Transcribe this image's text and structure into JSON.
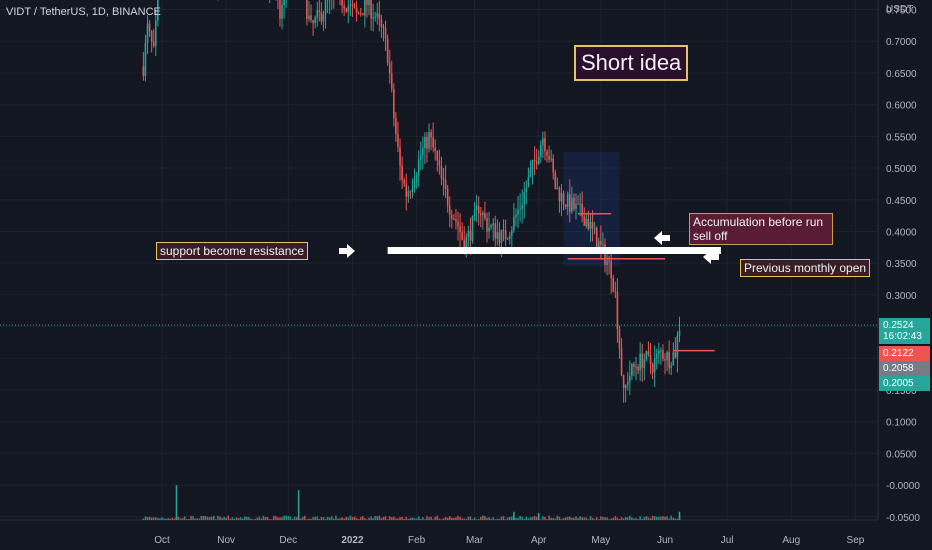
{
  "header": {
    "symbol": "VIDT / TetherUS, 1D, BINANCE",
    "currency": "USDT"
  },
  "chart_data": {
    "type": "candlestick",
    "y_axis": {
      "ticks": [
        "0.7500",
        "0.7000",
        "0.6500",
        "0.6000",
        "0.5500",
        "0.5000",
        "0.4500",
        "0.4000",
        "0.3500",
        "0.3000",
        "0.2500",
        "0.2000",
        "0.1500",
        "0.1000",
        "0.0500",
        "-0.0000",
        "-0.0500"
      ],
      "range": [
        -0.055,
        0.765
      ]
    },
    "x_axis": {
      "ticks": [
        {
          "label": "Oct",
          "date": "2021-10-01"
        },
        {
          "label": "Nov",
          "date": "2021-11-01"
        },
        {
          "label": "Dec",
          "date": "2021-12-01"
        },
        {
          "label": "2022",
          "date": "2022-01-01",
          "bold": true
        },
        {
          "label": "Feb",
          "date": "2022-02-01"
        },
        {
          "label": "Mar",
          "date": "2022-03-01"
        },
        {
          "label": "Apr",
          "date": "2022-04-01"
        },
        {
          "label": "May",
          "date": "2022-05-01"
        },
        {
          "label": "Jun",
          "date": "2022-06-01"
        },
        {
          "label": "Jul",
          "date": "2022-07-01"
        },
        {
          "label": "Aug",
          "date": "2022-08-01"
        },
        {
          "label": "Sep",
          "date": "2022-09-01"
        }
      ]
    },
    "price_path": [
      [
        "2021-09-22",
        0.66
      ],
      [
        "2021-09-24",
        0.72
      ],
      [
        "2021-09-27",
        0.68
      ],
      [
        "2021-09-29",
        0.76
      ],
      [
        "2021-10-01",
        0.8
      ],
      [
        "2021-11-20",
        0.8
      ],
      [
        "2021-11-24",
        0.78
      ],
      [
        "2021-11-27",
        0.74
      ],
      [
        "2021-12-01",
        0.8
      ],
      [
        "2021-12-08",
        0.78
      ],
      [
        "2021-12-12",
        0.72
      ],
      [
        "2021-12-16",
        0.74
      ],
      [
        "2021-12-20",
        0.76
      ],
      [
        "2021-12-25",
        0.77
      ],
      [
        "2021-12-29",
        0.76
      ],
      [
        "2022-01-03",
        0.74
      ],
      [
        "2022-01-08",
        0.76
      ],
      [
        "2022-01-12",
        0.74
      ],
      [
        "2022-01-16",
        0.71
      ],
      [
        "2022-01-18",
        0.68
      ],
      [
        "2022-01-21",
        0.58
      ],
      [
        "2022-01-24",
        0.5
      ],
      [
        "2022-01-27",
        0.46
      ],
      [
        "2022-01-30",
        0.48
      ],
      [
        "2022-02-03",
        0.52
      ],
      [
        "2022-02-07",
        0.55
      ],
      [
        "2022-02-10",
        0.52
      ],
      [
        "2022-02-13",
        0.48
      ],
      [
        "2022-02-17",
        0.44
      ],
      [
        "2022-02-21",
        0.41
      ],
      [
        "2022-02-24",
        0.38
      ],
      [
        "2022-02-27",
        0.4
      ],
      [
        "2022-03-03",
        0.44
      ],
      [
        "2022-03-07",
        0.41
      ],
      [
        "2022-03-11",
        0.4
      ],
      [
        "2022-03-15",
        0.39
      ],
      [
        "2022-03-19",
        0.41
      ],
      [
        "2022-03-23",
        0.44
      ],
      [
        "2022-03-27",
        0.48
      ],
      [
        "2022-03-31",
        0.52
      ],
      [
        "2022-04-03",
        0.55
      ],
      [
        "2022-04-06",
        0.52
      ],
      [
        "2022-04-09",
        0.47
      ],
      [
        "2022-04-13",
        0.45
      ],
      [
        "2022-04-17",
        0.44
      ],
      [
        "2022-04-21",
        0.43
      ],
      [
        "2022-04-24",
        0.42
      ],
      [
        "2022-04-27",
        0.4
      ],
      [
        "2022-04-30",
        0.38
      ],
      [
        "2022-05-03",
        0.36
      ],
      [
        "2022-05-06",
        0.34
      ],
      [
        "2022-05-08",
        0.3
      ],
      [
        "2022-05-10",
        0.22
      ],
      [
        "2022-05-12",
        0.14
      ],
      [
        "2022-05-14",
        0.17
      ],
      [
        "2022-05-18",
        0.19
      ],
      [
        "2022-05-22",
        0.2
      ],
      [
        "2022-05-26",
        0.19
      ],
      [
        "2022-05-30",
        0.21
      ],
      [
        "2022-06-03",
        0.2
      ],
      [
        "2022-06-06",
        0.21
      ],
      [
        "2022-06-08",
        0.2524
      ]
    ],
    "volume_spikes": [
      [
        "2021-10-08",
        0.055
      ],
      [
        "2021-12-06",
        0.047
      ],
      [
        "2022-03-20",
        0.013
      ],
      [
        "2022-04-01",
        0.011
      ],
      [
        "2022-06-08",
        0.013
      ]
    ],
    "last_price": {
      "label": "0.2524",
      "countdown": "16:02:43",
      "value": 0.2524,
      "color": "#26a69a"
    },
    "price_badges": [
      {
        "label": "0.2122",
        "value": 0.2122,
        "color": "#ef5350"
      },
      {
        "label": "0.2058",
        "value": 0.2058,
        "color": "#787b86"
      },
      {
        "label": "0.2005",
        "value": 0.2005,
        "color": "#26a69a"
      }
    ],
    "drawn_levels": [
      {
        "name": "support-resistance-line",
        "value": 0.37,
        "from": "2022-01-18",
        "to": "2022-06-28",
        "color": "#ffffff"
      },
      {
        "name": "previous-monthly-open-line",
        "value": 0.357,
        "from": "2022-04-15",
        "to": "2022-06-01",
        "color": "#ef5350"
      },
      {
        "name": "accumulation-top-line",
        "value": 0.428,
        "from": "2022-04-20",
        "to": "2022-05-06",
        "color": "#ef5350"
      },
      {
        "name": "current-level-line",
        "value": 0.212,
        "from": "2022-06-05",
        "to": "2022-06-25",
        "color": "#ef5350"
      }
    ],
    "colors": {
      "up": "#26a69a",
      "down": "#ef5350",
      "background": "#131722",
      "grid": "#1e222d"
    }
  },
  "annotations": {
    "title": "Short idea",
    "support": "support become resistance",
    "accumulation": "Accumulation before  run sell off",
    "monthly_open": "Previous monthly open"
  },
  "icons": {
    "arrow": "arrow-icon"
  }
}
